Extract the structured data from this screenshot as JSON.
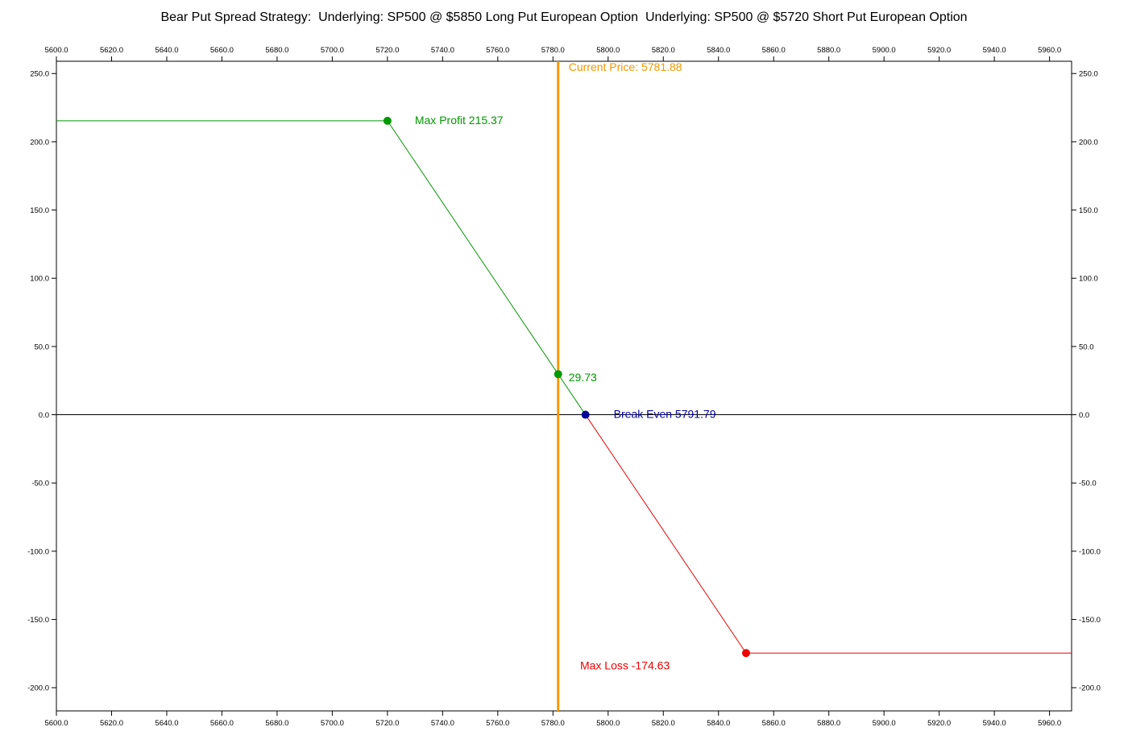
{
  "chart_data": {
    "type": "line",
    "title": "Bear Put Spread Strategy:  Underlying: SP500 @ $5850 Long Put European Option  Underlying: SP500 @ $5720 Short Put European Option",
    "xlabel": "",
    "ylabel": "",
    "xlim": [
      5600,
      5968
    ],
    "ylim": [
      -217,
      259
    ],
    "x_ticks": [
      "5600.0",
      "5620.0",
      "5640.0",
      "5660.0",
      "5680.0",
      "5700.0",
      "5720.0",
      "5740.0",
      "5760.0",
      "5780.0",
      "5800.0",
      "5820.0",
      "5840.0",
      "5860.0",
      "5880.0",
      "5900.0",
      "5920.0",
      "5940.0",
      "5960.0"
    ],
    "y_ticks": [
      "250.0",
      "200.0",
      "150.0",
      "100.0",
      "50.0",
      "0.0",
      "-50.0",
      "-100.0",
      "-150.0",
      "-200.0"
    ],
    "grid": false,
    "series": [
      {
        "color": "#009900",
        "x": [
          5600,
          5720,
          5791.79
        ],
        "y": [
          215.37,
          215.37,
          0
        ]
      },
      {
        "color": "#ee0000",
        "x": [
          5791.79,
          5850,
          5968
        ],
        "y": [
          0,
          -174.63,
          -174.63
        ]
      }
    ],
    "zero_line": {
      "y": 0,
      "color": "#000000"
    },
    "current_price": {
      "x": 5781.88,
      "color": "#f29900",
      "label": "Current Price: 5781.88"
    },
    "markers": [
      {
        "id": "max-profit",
        "x": 5720,
        "y": 215.37,
        "color": "#009900",
        "label": "Max Profit 215.37"
      },
      {
        "id": "current-value",
        "x": 5781.88,
        "y": 29.73,
        "color": "#009900",
        "label": "29.73"
      },
      {
        "id": "break-even",
        "x": 5791.79,
        "y": 0,
        "color": "#000099",
        "label": "Break Even 5791.79"
      },
      {
        "id": "max-loss",
        "x": 5850,
        "y": -174.63,
        "color": "#ee0000",
        "label": "Max Loss -174.63"
      }
    ]
  }
}
